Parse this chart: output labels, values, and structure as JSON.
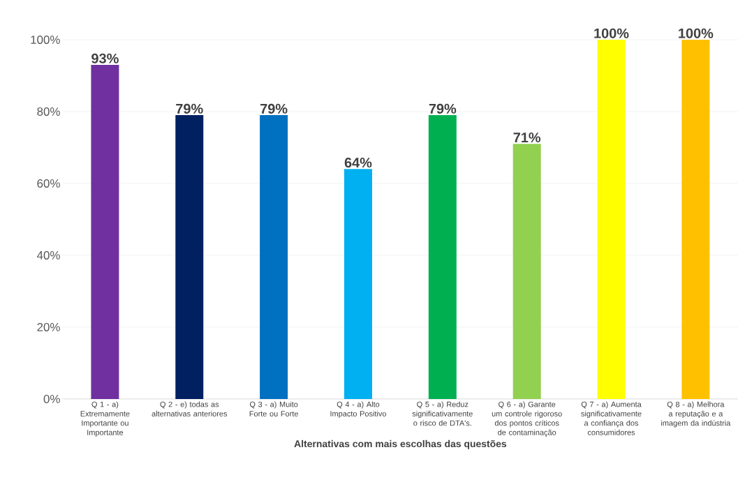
{
  "chart_data": {
    "type": "bar",
    "xlabel": "Alternativas com mais escolhas das questões",
    "categories": [
      "Q 1 - a) Extremamente Importante ou Importante",
      "Q 2 - e) todas as alternativas anteriores",
      "Q 3 - a) Muito Forte ou Forte",
      "Q 4 - a) Alto Impacto Positivo",
      "Q 5 - a) Reduz significativamente o risco de DTA's.",
      "Q 6 - a) Garante um controle rigoroso dos pontos críticos de contaminação",
      "Q 7 - a) Aumenta significativamente a confiança dos consumidores",
      "Q 8 - a) Melhora a reputação e a imagem da indústria"
    ],
    "values": [
      93,
      79,
      79,
      64,
      79,
      71,
      100,
      100
    ],
    "value_labels": [
      "93%",
      "79%",
      "79%",
      "64%",
      "79%",
      "71%",
      "100%",
      "100%"
    ],
    "colors": [
      "#7030a0",
      "#002060",
      "#0070c0",
      "#00b0f0",
      "#00b050",
      "#92d050",
      "#ffff00",
      "#ffc000"
    ],
    "ylim": [
      0,
      100
    ],
    "yticks": [
      {
        "value": 0,
        "label": "0%"
      },
      {
        "value": 20,
        "label": "20%"
      },
      {
        "value": 40,
        "label": "40%"
      },
      {
        "value": 60,
        "label": "60%"
      },
      {
        "value": 80,
        "label": "80%"
      },
      {
        "value": 100,
        "label": "100%"
      }
    ],
    "grid": "y"
  }
}
